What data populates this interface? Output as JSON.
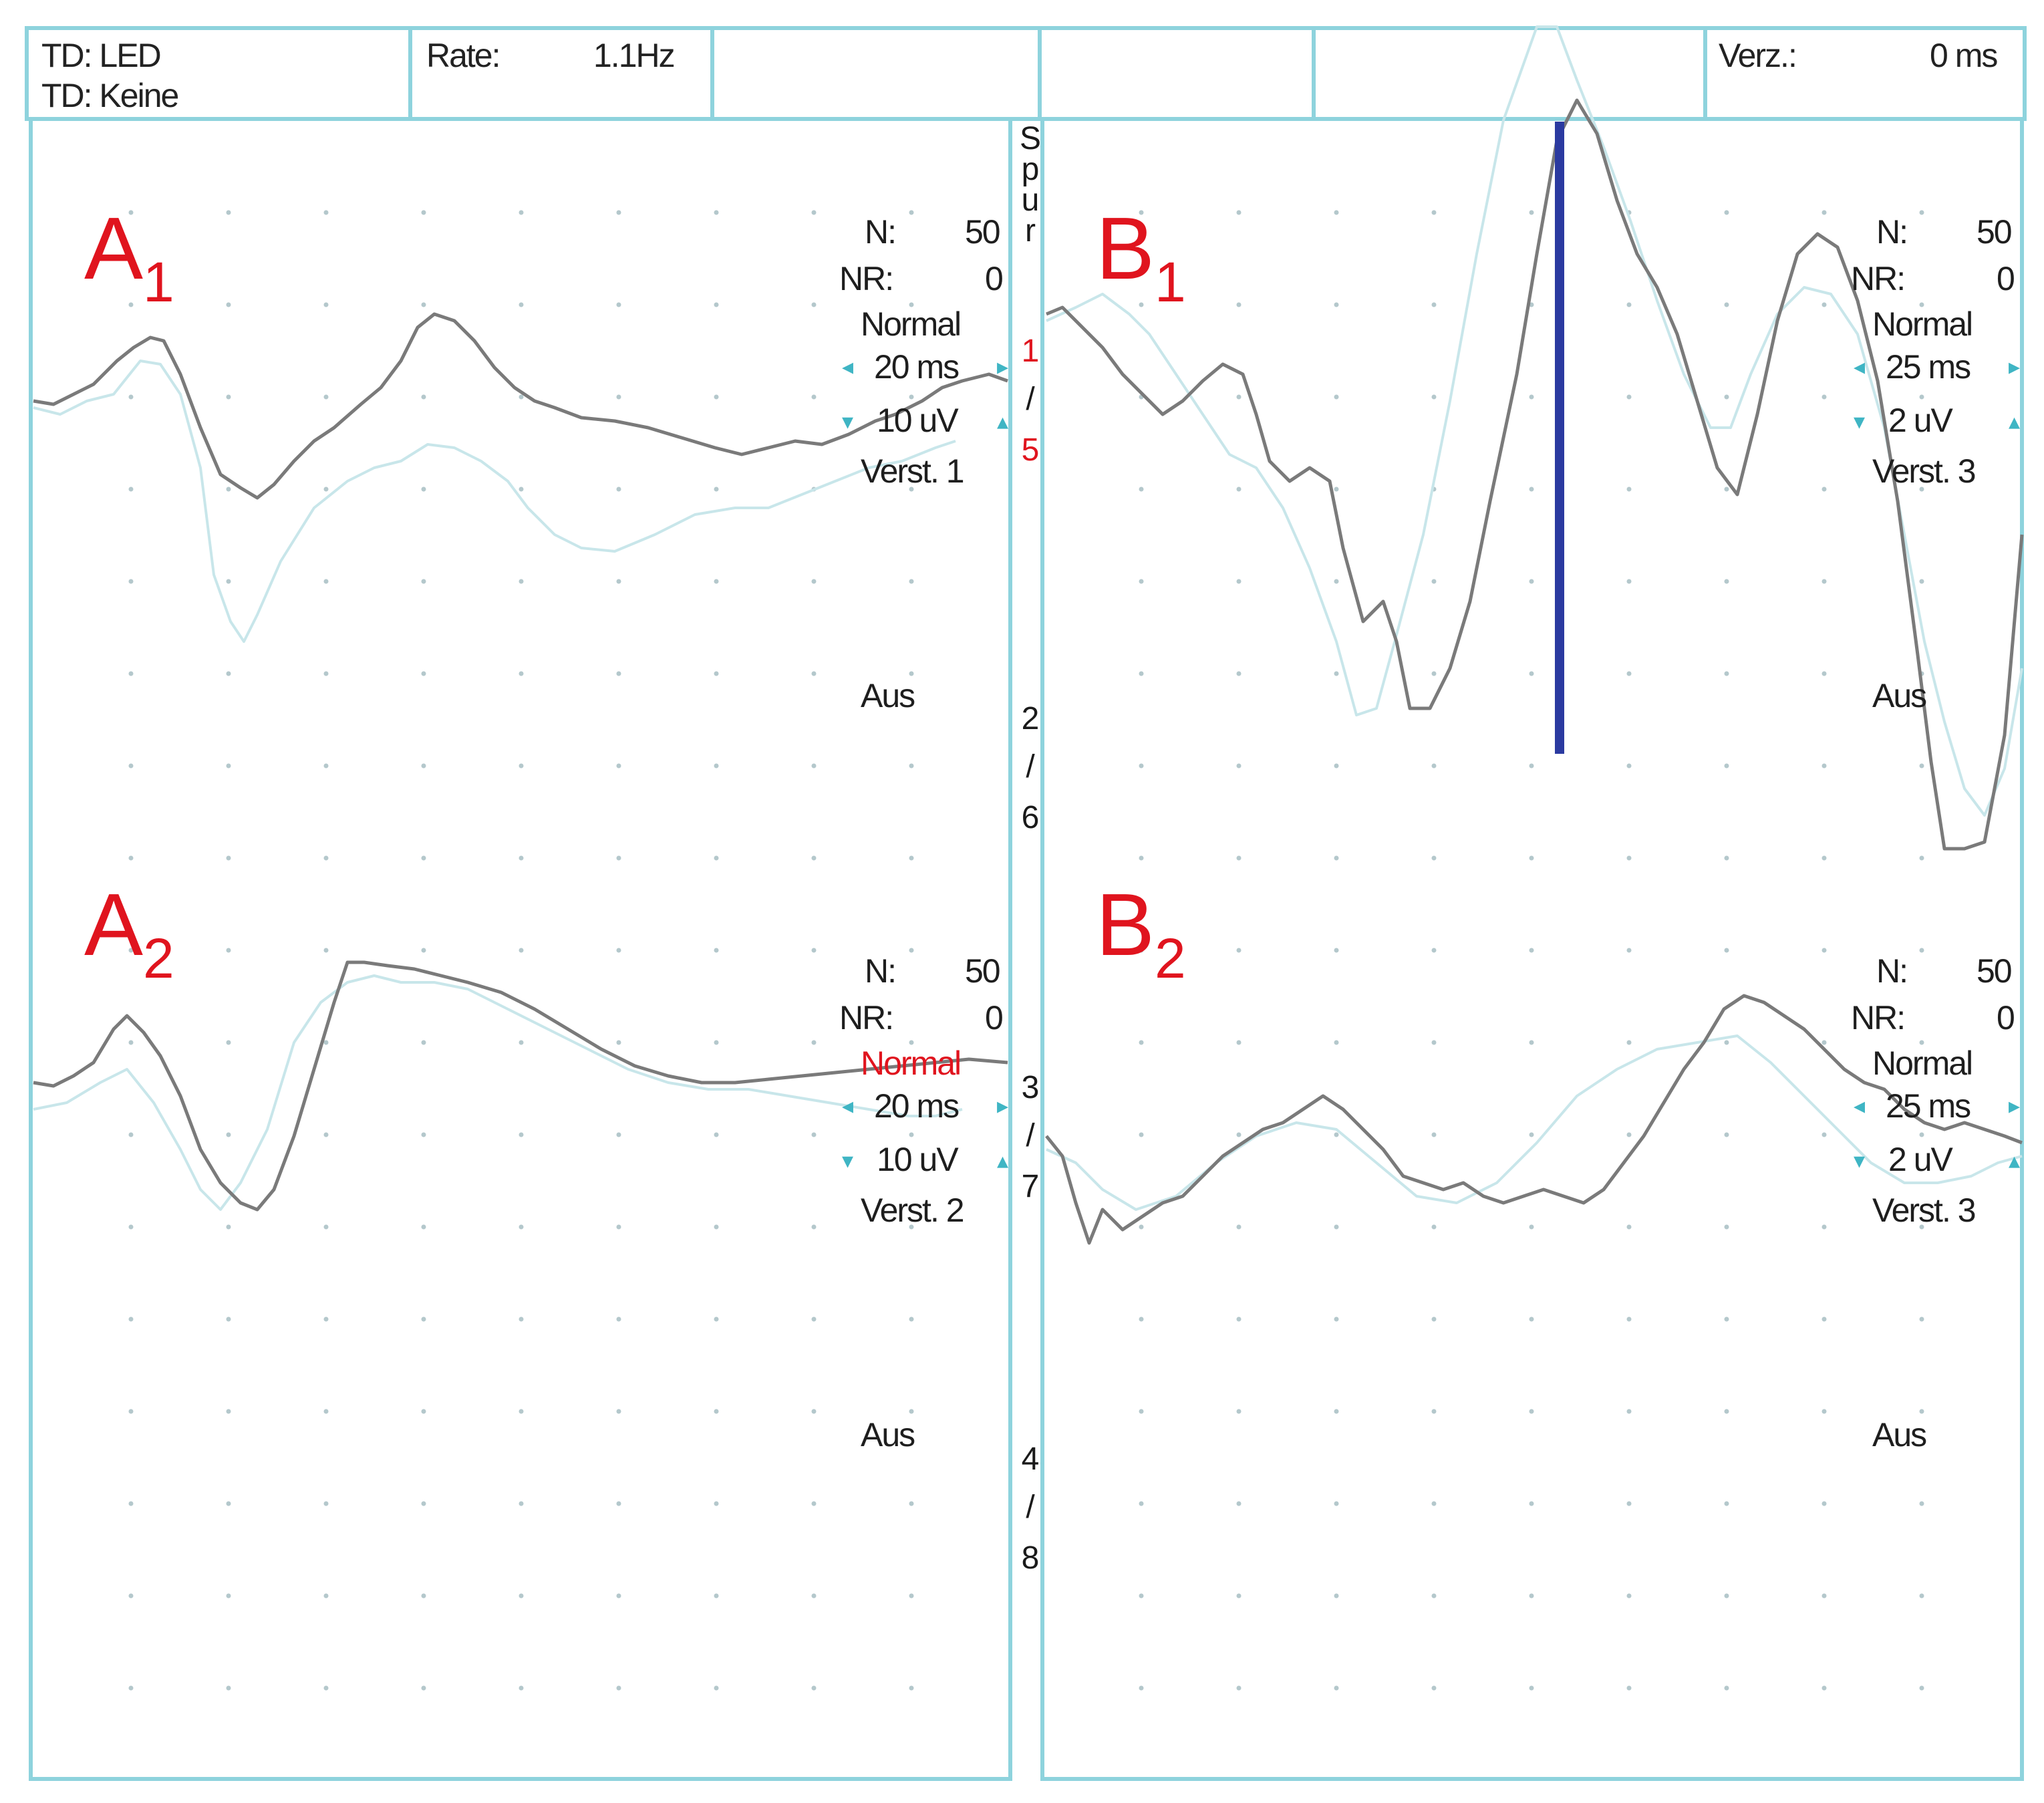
{
  "header": {
    "td_stimulus": "TD: LED",
    "td_secondary": "TD: Keine",
    "rate_label": "Rate:",
    "rate_value": "1.1Hz",
    "delay_label": "Verz.:",
    "delay_value": "0 ms"
  },
  "spur": {
    "title_letters": [
      "S",
      "p",
      "u",
      "r"
    ],
    "groups": [
      {
        "a": "1",
        "sep": "/",
        "b": "5",
        "highlight": true
      },
      {
        "a": "2",
        "sep": "/",
        "b": "6",
        "highlight": false
      },
      {
        "a": "3",
        "sep": "/",
        "b": "7",
        "highlight": false
      },
      {
        "a": "4",
        "sep": "/",
        "b": "8",
        "highlight": false
      }
    ]
  },
  "panels": [
    {
      "id": "A1",
      "letter": "A",
      "sub": "1",
      "n_label": "N:",
      "n": "50",
      "nr_label": "NR:",
      "nr": "0",
      "mode": "Normal",
      "mode_highlight": false,
      "time_div": "20 ms",
      "amp_div": "10 uV",
      "gain": "Verst. 1",
      "status": "Aus"
    },
    {
      "id": "A2",
      "letter": "A",
      "sub": "2",
      "n_label": "N:",
      "n": "50",
      "nr_label": "NR:",
      "nr": "0",
      "mode": "Normal",
      "mode_highlight": true,
      "time_div": "20 ms",
      "amp_div": "10 uV",
      "gain": "Verst. 2",
      "status": "Aus"
    },
    {
      "id": "B1",
      "letter": "B",
      "sub": "1",
      "n_label": "N:",
      "n": "50",
      "nr_label": "NR:",
      "nr": "0",
      "mode": "Normal",
      "mode_highlight": false,
      "time_div": "25 ms",
      "amp_div": "2 uV",
      "gain": "Verst. 3",
      "status": "Aus"
    },
    {
      "id": "B2",
      "letter": "B",
      "sub": "2",
      "n_label": "N:",
      "n": "50",
      "nr_label": "NR:",
      "nr": "0",
      "mode": "Normal",
      "mode_highlight": false,
      "time_div": "25 ms",
      "amp_div": "2 uV",
      "gain": "Verst. 3",
      "status": "Aus"
    }
  ],
  "colors": {
    "frame": "#8ed3dd",
    "grid_dot": "#b4c8cc",
    "trace_main": "#7a7a7a",
    "trace_ref": "#c8e6ea",
    "cursor": "#2b3aa0",
    "accent_red": "#e0141e",
    "arrow": "#3fb5c4"
  },
  "icons": {
    "time_decrease": "arrow-left-icon",
    "time_increase": "arrow-right-icon",
    "amp_decrease": "arrow-down-icon",
    "amp_increase": "arrow-up-icon"
  }
}
